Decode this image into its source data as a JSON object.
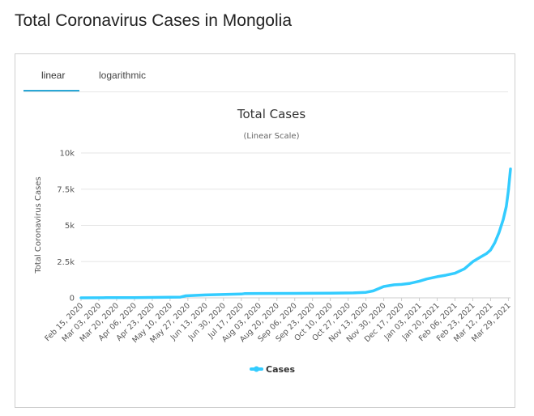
{
  "page": {
    "title": "Total Coronavirus Cases in Mongolia"
  },
  "tabs": [
    {
      "label": "linear",
      "active": true
    },
    {
      "label": "logarithmic",
      "active": false
    }
  ],
  "colors": {
    "series": "#33ccff",
    "accent": "#2aa7d6",
    "grid": "#e6e6e6"
  },
  "chart_data": {
    "type": "line",
    "title": "Total Cases",
    "subtitle": "(Linear Scale)",
    "ylabel": "Total Coronavirus Cases",
    "xlabel": "",
    "ylim": [
      0,
      10000
    ],
    "yticks": [
      0,
      2500,
      5000,
      7500,
      10000
    ],
    "ytick_labels": [
      "0",
      "2.5k",
      "5k",
      "7.5k",
      "10k"
    ],
    "grid": true,
    "legend": "bottom-center",
    "x_tick_labels": [
      "Feb 15, 2020",
      "Mar 03, 2020",
      "Mar 20, 2020",
      "Apr 06, 2020",
      "Apr 23, 2020",
      "May 10, 2020",
      "May 27, 2020",
      "Jun 13, 2020",
      "Jun 30, 2020",
      "Jul 17, 2020",
      "Aug 03, 2020",
      "Aug 20, 2020",
      "Sep 06, 2020",
      "Sep 23, 2020",
      "Oct 10, 2020",
      "Oct 27, 2020",
      "Nov 13, 2020",
      "Nov 30, 2020",
      "Dec 17, 2020",
      "Jan 03, 2021",
      "Jan 20, 2021",
      "Feb 06, 2021",
      "Feb 23, 2021",
      "Mar 12, 2021",
      "Mar 29, 2021"
    ],
    "series": [
      {
        "name": "Cases",
        "x": [
          "2020-02-15",
          "2020-03-10",
          "2020-04-06",
          "2020-05-10",
          "2020-05-20",
          "2020-05-25",
          "2020-06-13",
          "2020-07-17",
          "2020-07-20",
          "2020-08-03",
          "2020-09-06",
          "2020-10-10",
          "2020-11-01",
          "2020-11-13",
          "2020-11-20",
          "2020-11-30",
          "2020-12-10",
          "2020-12-17",
          "2020-12-25",
          "2021-01-03",
          "2021-01-10",
          "2021-01-20",
          "2021-01-28",
          "2021-02-06",
          "2021-02-15",
          "2021-02-23",
          "2021-03-02",
          "2021-03-08",
          "2021-03-12",
          "2021-03-16",
          "2021-03-20",
          "2021-03-24",
          "2021-03-27",
          "2021-03-29",
          "2021-03-31"
        ],
        "y": [
          0,
          10,
          15,
          42,
          50,
          140,
          200,
          260,
          290,
          300,
          310,
          320,
          340,
          380,
          480,
          780,
          900,
          930,
          1000,
          1150,
          1300,
          1460,
          1560,
          1700,
          2000,
          2500,
          2800,
          3050,
          3300,
          3800,
          4500,
          5400,
          6300,
          7400,
          8900
        ]
      }
    ]
  }
}
